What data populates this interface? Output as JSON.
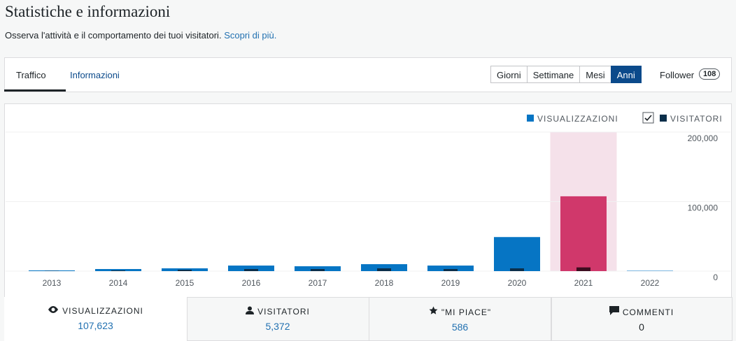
{
  "header": {
    "title": "Statistiche e informazioni",
    "subtitle": "Osserva l'attività e il comportamento dei tuoi visitatori.",
    "link": "Scopri di più."
  },
  "tabs": [
    "Traffico",
    "Informazioni"
  ],
  "periods": {
    "options": [
      "Giorni",
      "Settimane",
      "Mesi",
      "Anni"
    ],
    "active": "Anni"
  },
  "follower": {
    "label": "Follower",
    "count": "108"
  },
  "chart_data": {
    "type": "bar",
    "categories": [
      "2013",
      "2014",
      "2015",
      "2016",
      "2017",
      "2018",
      "2019",
      "2020",
      "2021",
      "2022"
    ],
    "series": [
      {
        "name": "VISUALIZZAZIONI",
        "color": "#0675c4",
        "highlight_color": "#d0386b",
        "values": [
          1000,
          3000,
          4000,
          8000,
          7000,
          10000,
          8000,
          49000,
          107623,
          500
        ]
      },
      {
        "name": "VISITATORI",
        "color": "#0b2e4a",
        "highlight_color": "#3d0c1f",
        "values": [
          300,
          1000,
          2000,
          3000,
          3000,
          4000,
          3000,
          4000,
          5372,
          0
        ]
      }
    ],
    "highlight": {
      "category": "2021",
      "band_color": "#f5e1ea"
    },
    "ylim": [
      0,
      200000
    ],
    "yticks": [
      0,
      {
        "value": 100000,
        "label": "100,000"
      },
      {
        "value": 200000,
        "label": "200,000"
      }
    ],
    "grid": true
  },
  "stats": [
    {
      "label": "VISUALIZZAZIONI",
      "value": "107,623"
    },
    {
      "label": "VISITATORI",
      "value": "5,372"
    },
    {
      "label": "\"MI PIACE\"",
      "value": "586"
    },
    {
      "label": "COMMENTI",
      "value": "0"
    }
  ]
}
